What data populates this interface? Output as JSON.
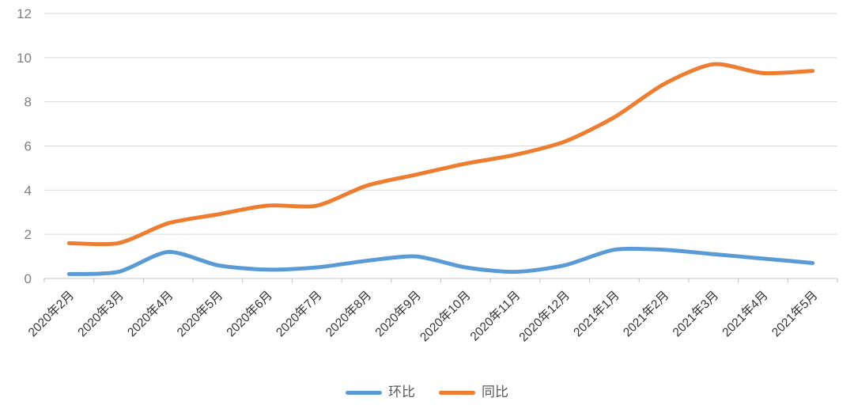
{
  "chart_data": {
    "type": "line",
    "title": "",
    "categories": [
      "2020年2月",
      "2020年3月",
      "2020年4月",
      "2020年5月",
      "2020年6月",
      "2020年7月",
      "2020年8月",
      "2020年9月",
      "2020年10月",
      "2020年11月",
      "2020年12月",
      "2021年1月",
      "2021年2月",
      "2021年3月",
      "2021年4月",
      "2021年5月"
    ],
    "series": [
      {
        "name": "环比",
        "color": "#5B9BD5",
        "values": [
          0.2,
          0.3,
          1.2,
          0.6,
          0.4,
          0.5,
          0.8,
          1.0,
          0.5,
          0.3,
          0.6,
          1.3,
          1.3,
          1.1,
          0.9,
          0.7
        ]
      },
      {
        "name": "同比",
        "color": "#ED7D31",
        "values": [
          1.6,
          1.6,
          2.5,
          2.9,
          3.3,
          3.3,
          4.2,
          4.7,
          5.2,
          5.6,
          6.2,
          7.3,
          8.8,
          9.7,
          9.3,
          9.4
        ]
      }
    ],
    "xlabel": "",
    "ylabel": "",
    "ylim": [
      0,
      12
    ],
    "ytick_step": 2,
    "ytick_labels": [
      "0",
      "2",
      "4",
      "6",
      "8",
      "10",
      "12"
    ],
    "grid": true,
    "smooth": true,
    "legend_position": "bottom-center",
    "x_label_rotation_deg": 45
  },
  "colors": {
    "background": "#FFFFFF",
    "gridline": "#D9D9D9",
    "axis_line": "#C9C9C9",
    "tick_mark": "#BFBFBF",
    "y_tick_label": "#808080",
    "x_tick_label": "#333333",
    "legend_text": "#595959"
  }
}
